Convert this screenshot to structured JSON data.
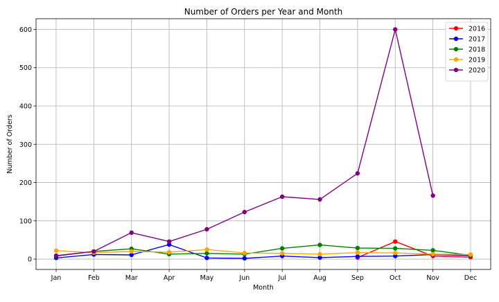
{
  "chart_data": {
    "type": "line",
    "title": "Number of Orders per Year and Month",
    "xlabel": "Month",
    "ylabel": "Number of Orders",
    "categories": [
      "Jan",
      "Feb",
      "Mar",
      "Apr",
      "May",
      "Jun",
      "Jul",
      "Aug",
      "Sep",
      "Oct",
      "Nov",
      "Dec"
    ],
    "ylim": [
      -27,
      628
    ],
    "yticks": [
      0,
      100,
      200,
      300,
      400,
      500,
      600
    ],
    "grid": true,
    "legend_position": "top-right",
    "series": [
      {
        "name": "2016",
        "color": "#ff0000",
        "values": [
          null,
          null,
          null,
          null,
          null,
          null,
          null,
          null,
          4,
          46,
          8,
          5
        ]
      },
      {
        "name": "2017",
        "color": "#0000ff",
        "values": [
          3,
          12,
          11,
          38,
          3,
          2,
          8,
          4,
          7,
          8,
          12,
          9
        ]
      },
      {
        "name": "2018",
        "color": "#008000",
        "values": [
          8,
          20,
          27,
          13,
          15,
          13,
          28,
          37,
          29,
          28,
          23,
          10
        ]
      },
      {
        "name": "2019",
        "color": "#ffa500",
        "values": [
          22,
          17,
          20,
          18,
          25,
          16,
          15,
          13,
          17,
          16,
          13,
          12
        ]
      },
      {
        "name": "2020",
        "color": "#800080",
        "values": [
          9,
          20,
          69,
          46,
          78,
          123,
          163,
          156,
          224,
          600,
          166,
          null
        ]
      }
    ]
  }
}
